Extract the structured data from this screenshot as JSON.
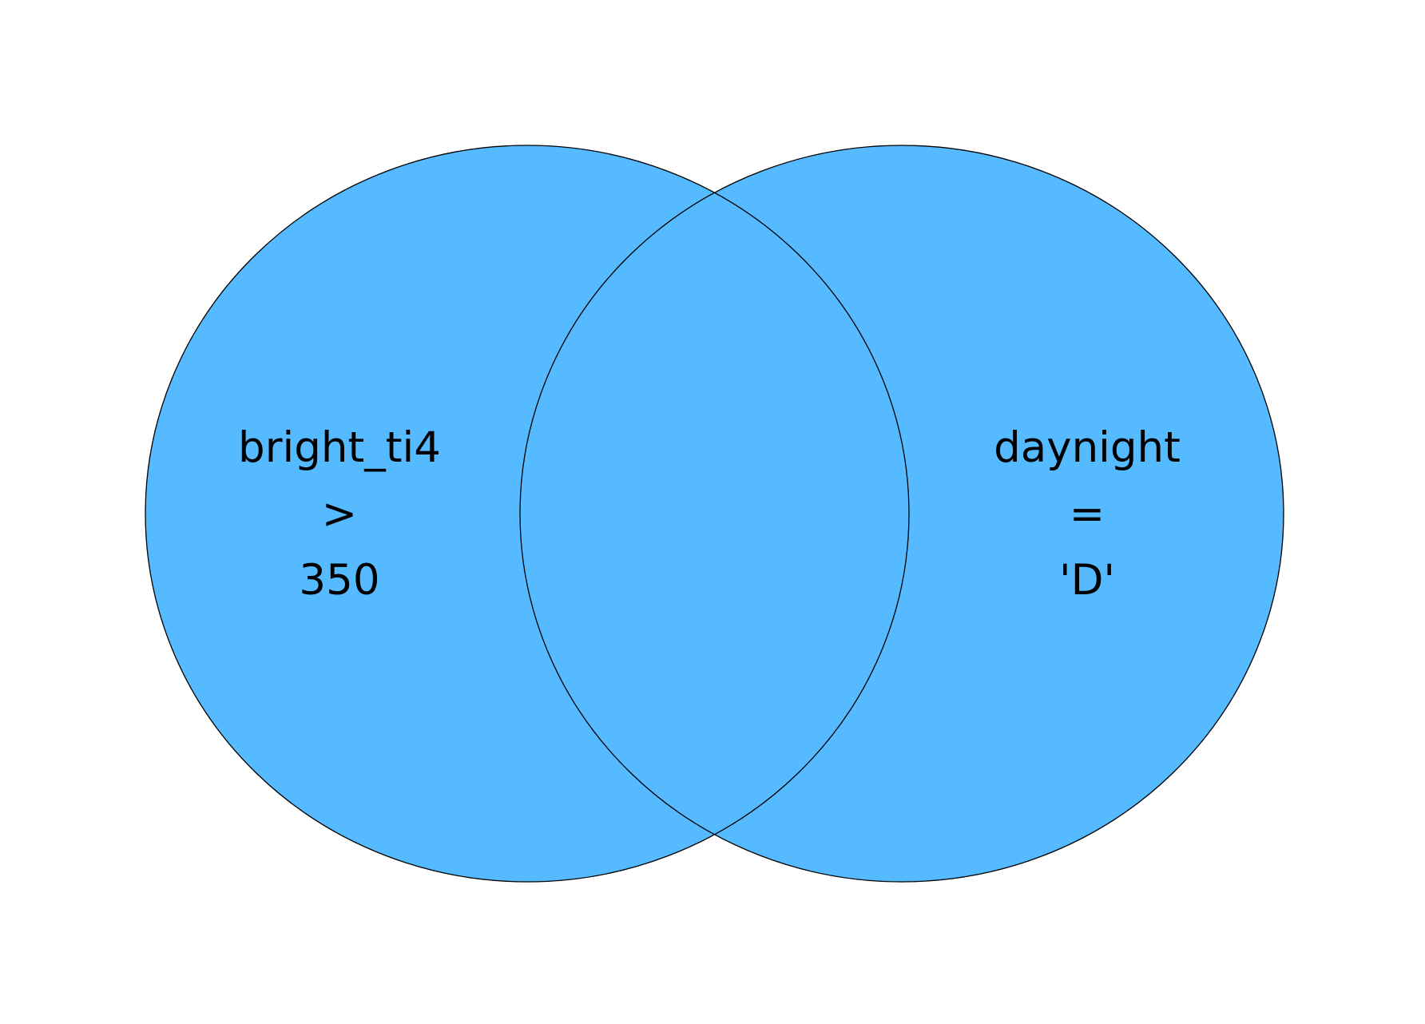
{
  "diagram": {
    "type": "venn",
    "fill_color": "#55BAFF",
    "stroke_color": "#000000",
    "background": "#FFFFFF",
    "sets": [
      {
        "lines": [
          "bright_ti4",
          ">",
          "350"
        ]
      },
      {
        "lines": [
          "daynight",
          "=",
          "'D'"
        ]
      }
    ]
  }
}
